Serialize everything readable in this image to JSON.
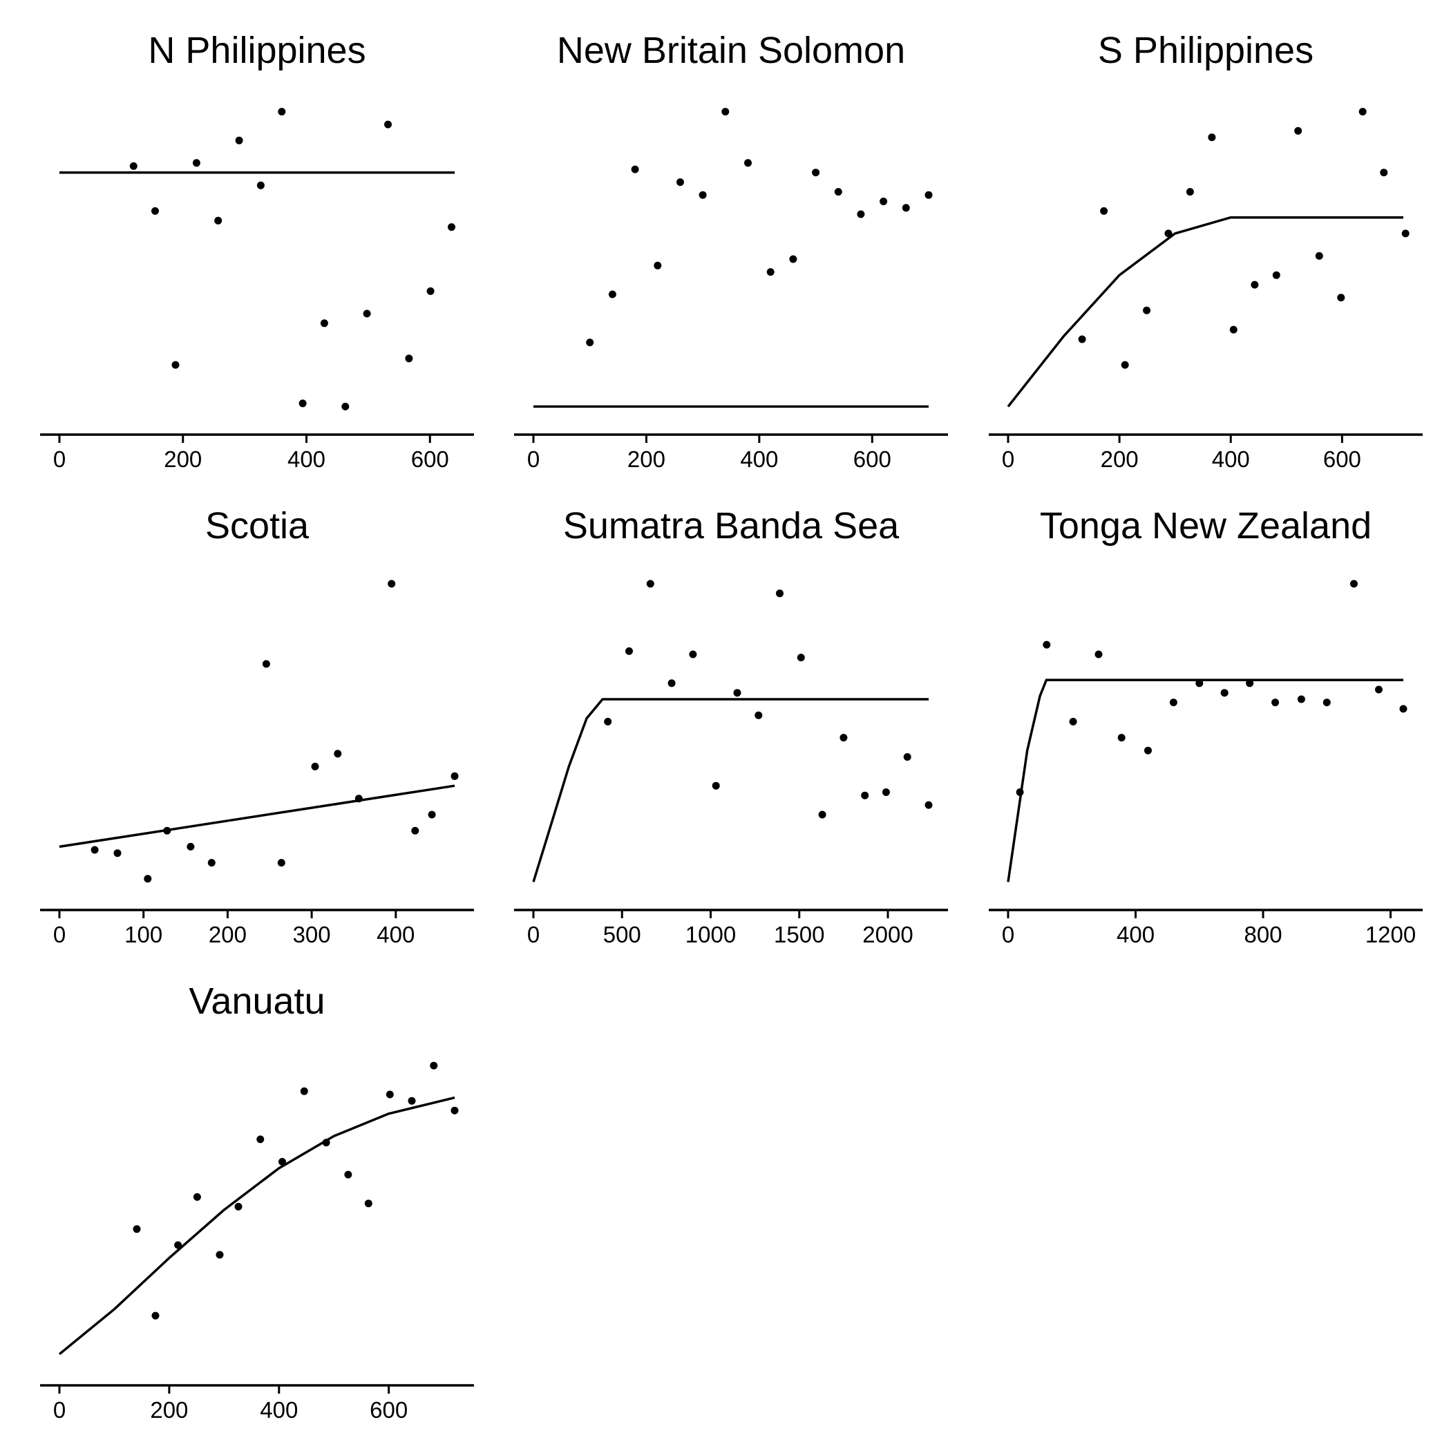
{
  "chart_data": [
    {
      "type": "scatter",
      "title": "N Philippines",
      "xlim": [
        0,
        640
      ],
      "ylim": [
        0,
        1
      ],
      "x_ticks": [
        0,
        200,
        400,
        600
      ],
      "points": [
        [
          120,
          0.79
        ],
        [
          155,
          0.65
        ],
        [
          188,
          0.17
        ],
        [
          222,
          0.8
        ],
        [
          257,
          0.62
        ],
        [
          291,
          0.87
        ],
        [
          326,
          0.73
        ],
        [
          360,
          0.96
        ],
        [
          394,
          0.05
        ],
        [
          429,
          0.3
        ],
        [
          463,
          0.04
        ],
        [
          498,
          0.33
        ],
        [
          532,
          0.92
        ],
        [
          566,
          0.19
        ],
        [
          601,
          0.4
        ],
        [
          635,
          0.6
        ]
      ],
      "fit": [
        [
          0,
          0.77
        ],
        [
          640,
          0.77
        ]
      ]
    },
    {
      "type": "scatter",
      "title": "New Britain Solomon",
      "xlim": [
        0,
        700
      ],
      "ylim": [
        0,
        1
      ],
      "x_ticks": [
        0,
        200,
        400,
        600
      ],
      "points": [
        [
          100,
          0.24
        ],
        [
          140,
          0.39
        ],
        [
          180,
          0.78
        ],
        [
          220,
          0.48
        ],
        [
          260,
          0.74
        ],
        [
          300,
          0.7
        ],
        [
          340,
          0.96
        ],
        [
          380,
          0.8
        ],
        [
          420,
          0.46
        ],
        [
          460,
          0.5
        ],
        [
          500,
          0.77
        ],
        [
          540,
          0.71
        ],
        [
          580,
          0.64
        ],
        [
          620,
          0.68
        ],
        [
          660,
          0.66
        ],
        [
          700,
          0.7
        ]
      ],
      "fit": [
        [
          0,
          0.04
        ],
        [
          700,
          0.04
        ]
      ]
    },
    {
      "type": "scatter",
      "title": "S Philippines",
      "xlim": [
        0,
        710
      ],
      "ylim": [
        0,
        1
      ],
      "x_ticks": [
        0,
        200,
        400,
        600
      ],
      "points": [
        [
          133,
          0.25
        ],
        [
          172,
          0.65
        ],
        [
          210,
          0.17
        ],
        [
          249,
          0.34
        ],
        [
          288,
          0.58
        ],
        [
          327,
          0.71
        ],
        [
          366,
          0.88
        ],
        [
          405,
          0.28
        ],
        [
          443,
          0.42
        ],
        [
          482,
          0.45
        ],
        [
          521,
          0.9
        ],
        [
          559,
          0.51
        ],
        [
          598,
          0.38
        ],
        [
          637,
          0.96
        ],
        [
          675,
          0.77
        ],
        [
          714,
          0.58
        ]
      ],
      "fit": [
        [
          0,
          0.04
        ],
        [
          100,
          0.26
        ],
        [
          200,
          0.45
        ],
        [
          300,
          0.58
        ],
        [
          400,
          0.63
        ],
        [
          710,
          0.63
        ]
      ]
    },
    {
      "type": "scatter",
      "title": "Scotia",
      "xlim": [
        0,
        470
      ],
      "ylim": [
        0,
        1
      ],
      "x_ticks": [
        0,
        100,
        200,
        300,
        400
      ],
      "points": [
        [
          42,
          0.14
        ],
        [
          69,
          0.13
        ],
        [
          105,
          0.05
        ],
        [
          128,
          0.2
        ],
        [
          156,
          0.15
        ],
        [
          181,
          0.1
        ],
        [
          246,
          0.72
        ],
        [
          264,
          0.1
        ],
        [
          304,
          0.4
        ],
        [
          331,
          0.44
        ],
        [
          356,
          0.3
        ],
        [
          395,
          0.97
        ],
        [
          423,
          0.2
        ],
        [
          443,
          0.25
        ],
        [
          470,
          0.37
        ]
      ],
      "fit": [
        [
          0,
          0.15
        ],
        [
          470,
          0.34
        ]
      ]
    },
    {
      "type": "scatter",
      "title": "Sumatra Banda Sea",
      "xlim": [
        0,
        2230
      ],
      "ylim": [
        0,
        1
      ],
      "x_ticks": [
        0,
        500,
        1000,
        1500,
        2000
      ],
      "points": [
        [
          420,
          0.54
        ],
        [
          540,
          0.76
        ],
        [
          660,
          0.97
        ],
        [
          780,
          0.66
        ],
        [
          900,
          0.75
        ],
        [
          1030,
          0.34
        ],
        [
          1150,
          0.63
        ],
        [
          1270,
          0.56
        ],
        [
          1390,
          0.94
        ],
        [
          1510,
          0.74
        ],
        [
          1630,
          0.25
        ],
        [
          1750,
          0.49
        ],
        [
          1870,
          0.31
        ],
        [
          1990,
          0.32
        ],
        [
          2110,
          0.43
        ],
        [
          2230,
          0.28
        ]
      ],
      "fit": [
        [
          0,
          0.04
        ],
        [
          100,
          0.22
        ],
        [
          200,
          0.4
        ],
        [
          300,
          0.55
        ],
        [
          390,
          0.61
        ],
        [
          2230,
          0.61
        ]
      ]
    },
    {
      "type": "scatter",
      "title": "Tonga New Zealand",
      "xlim": [
        0,
        1240
      ],
      "ylim": [
        0,
        1
      ],
      "x_ticks": [
        0,
        400,
        800,
        1200
      ],
      "points": [
        [
          37,
          0.32
        ],
        [
          121,
          0.78
        ],
        [
          204,
          0.54
        ],
        [
          284,
          0.75
        ],
        [
          356,
          0.49
        ],
        [
          439,
          0.45
        ],
        [
          519,
          0.6
        ],
        [
          600,
          0.66
        ],
        [
          679,
          0.63
        ],
        [
          758,
          0.66
        ],
        [
          838,
          0.6
        ],
        [
          920,
          0.61
        ],
        [
          1000,
          0.6
        ],
        [
          1085,
          0.97
        ],
        [
          1163,
          0.64
        ],
        [
          1240,
          0.58
        ]
      ],
      "fit": [
        [
          0,
          0.04
        ],
        [
          60,
          0.45
        ],
        [
          100,
          0.62
        ],
        [
          120,
          0.67
        ],
        [
          1240,
          0.67
        ]
      ]
    },
    {
      "type": "scatter",
      "title": "Vanuatu",
      "xlim": [
        0,
        720
      ],
      "ylim": [
        0,
        1
      ],
      "x_ticks": [
        0,
        200,
        400,
        600
      ],
      "points": [
        [
          141,
          0.44
        ],
        [
          175,
          0.17
        ],
        [
          216,
          0.39
        ],
        [
          251,
          0.54
        ],
        [
          292,
          0.36
        ],
        [
          326,
          0.51
        ],
        [
          366,
          0.72
        ],
        [
          406,
          0.65
        ],
        [
          446,
          0.87
        ],
        [
          486,
          0.71
        ],
        [
          526,
          0.61
        ],
        [
          563,
          0.52
        ],
        [
          602,
          0.86
        ],
        [
          642,
          0.84
        ],
        [
          682,
          0.95
        ],
        [
          720,
          0.81
        ]
      ],
      "fit": [
        [
          0,
          0.05
        ],
        [
          100,
          0.19
        ],
        [
          200,
          0.35
        ],
        [
          300,
          0.5
        ],
        [
          400,
          0.63
        ],
        [
          500,
          0.73
        ],
        [
          600,
          0.8
        ],
        [
          720,
          0.85
        ]
      ]
    }
  ]
}
